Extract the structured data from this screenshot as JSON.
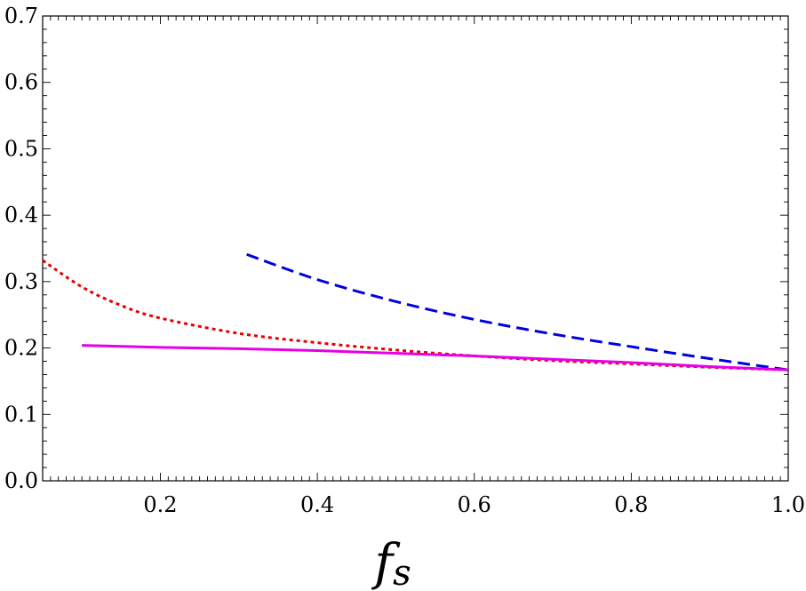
{
  "chart_data": {
    "type": "line",
    "title": "",
    "xlabel": {
      "main": "f",
      "sub": "s"
    },
    "ylabel": "",
    "xlim": [
      0.05,
      1.0
    ],
    "ylim": [
      0.0,
      0.7
    ],
    "grid": false,
    "legend": "none",
    "x_ticks": [
      0.2,
      0.4,
      0.6,
      0.8,
      1.0
    ],
    "x_tick_labels": [
      "0.2",
      "0.4",
      "0.6",
      "0.8",
      "1.0"
    ],
    "y_ticks": [
      0.0,
      0.1,
      0.2,
      0.3,
      0.4,
      0.5,
      0.6,
      0.7
    ],
    "y_tick_labels": [
      "0.0",
      "0.1",
      "0.2",
      "0.3",
      "0.4",
      "0.5",
      "0.6",
      "0.7"
    ],
    "series": [
      {
        "color": "#0000dd",
        "style": "dashed",
        "x": [
          0.31,
          0.4,
          0.5,
          0.6,
          0.7,
          0.8,
          0.9,
          1.0
        ],
        "y": [
          0.341,
          0.303,
          0.27,
          0.243,
          0.221,
          0.202,
          0.184,
          0.167
        ]
      },
      {
        "color": "#e60000",
        "style": "dotted",
        "x": [
          0.05,
          0.1,
          0.15,
          0.2,
          0.3,
          0.4,
          0.5,
          0.6,
          0.7,
          0.8,
          0.9,
          1.0
        ],
        "y": [
          0.332,
          0.292,
          0.264,
          0.245,
          0.222,
          0.208,
          0.197,
          0.188,
          0.181,
          0.176,
          0.171,
          0.167
        ]
      },
      {
        "color": "#e600e6",
        "style": "solid",
        "x": [
          0.1,
          0.2,
          0.3,
          0.4,
          0.5,
          0.6,
          0.7,
          0.8,
          0.9,
          1.0
        ],
        "y": [
          0.204,
          0.201,
          0.199,
          0.196,
          0.192,
          0.188,
          0.183,
          0.178,
          0.172,
          0.167
        ]
      }
    ]
  }
}
